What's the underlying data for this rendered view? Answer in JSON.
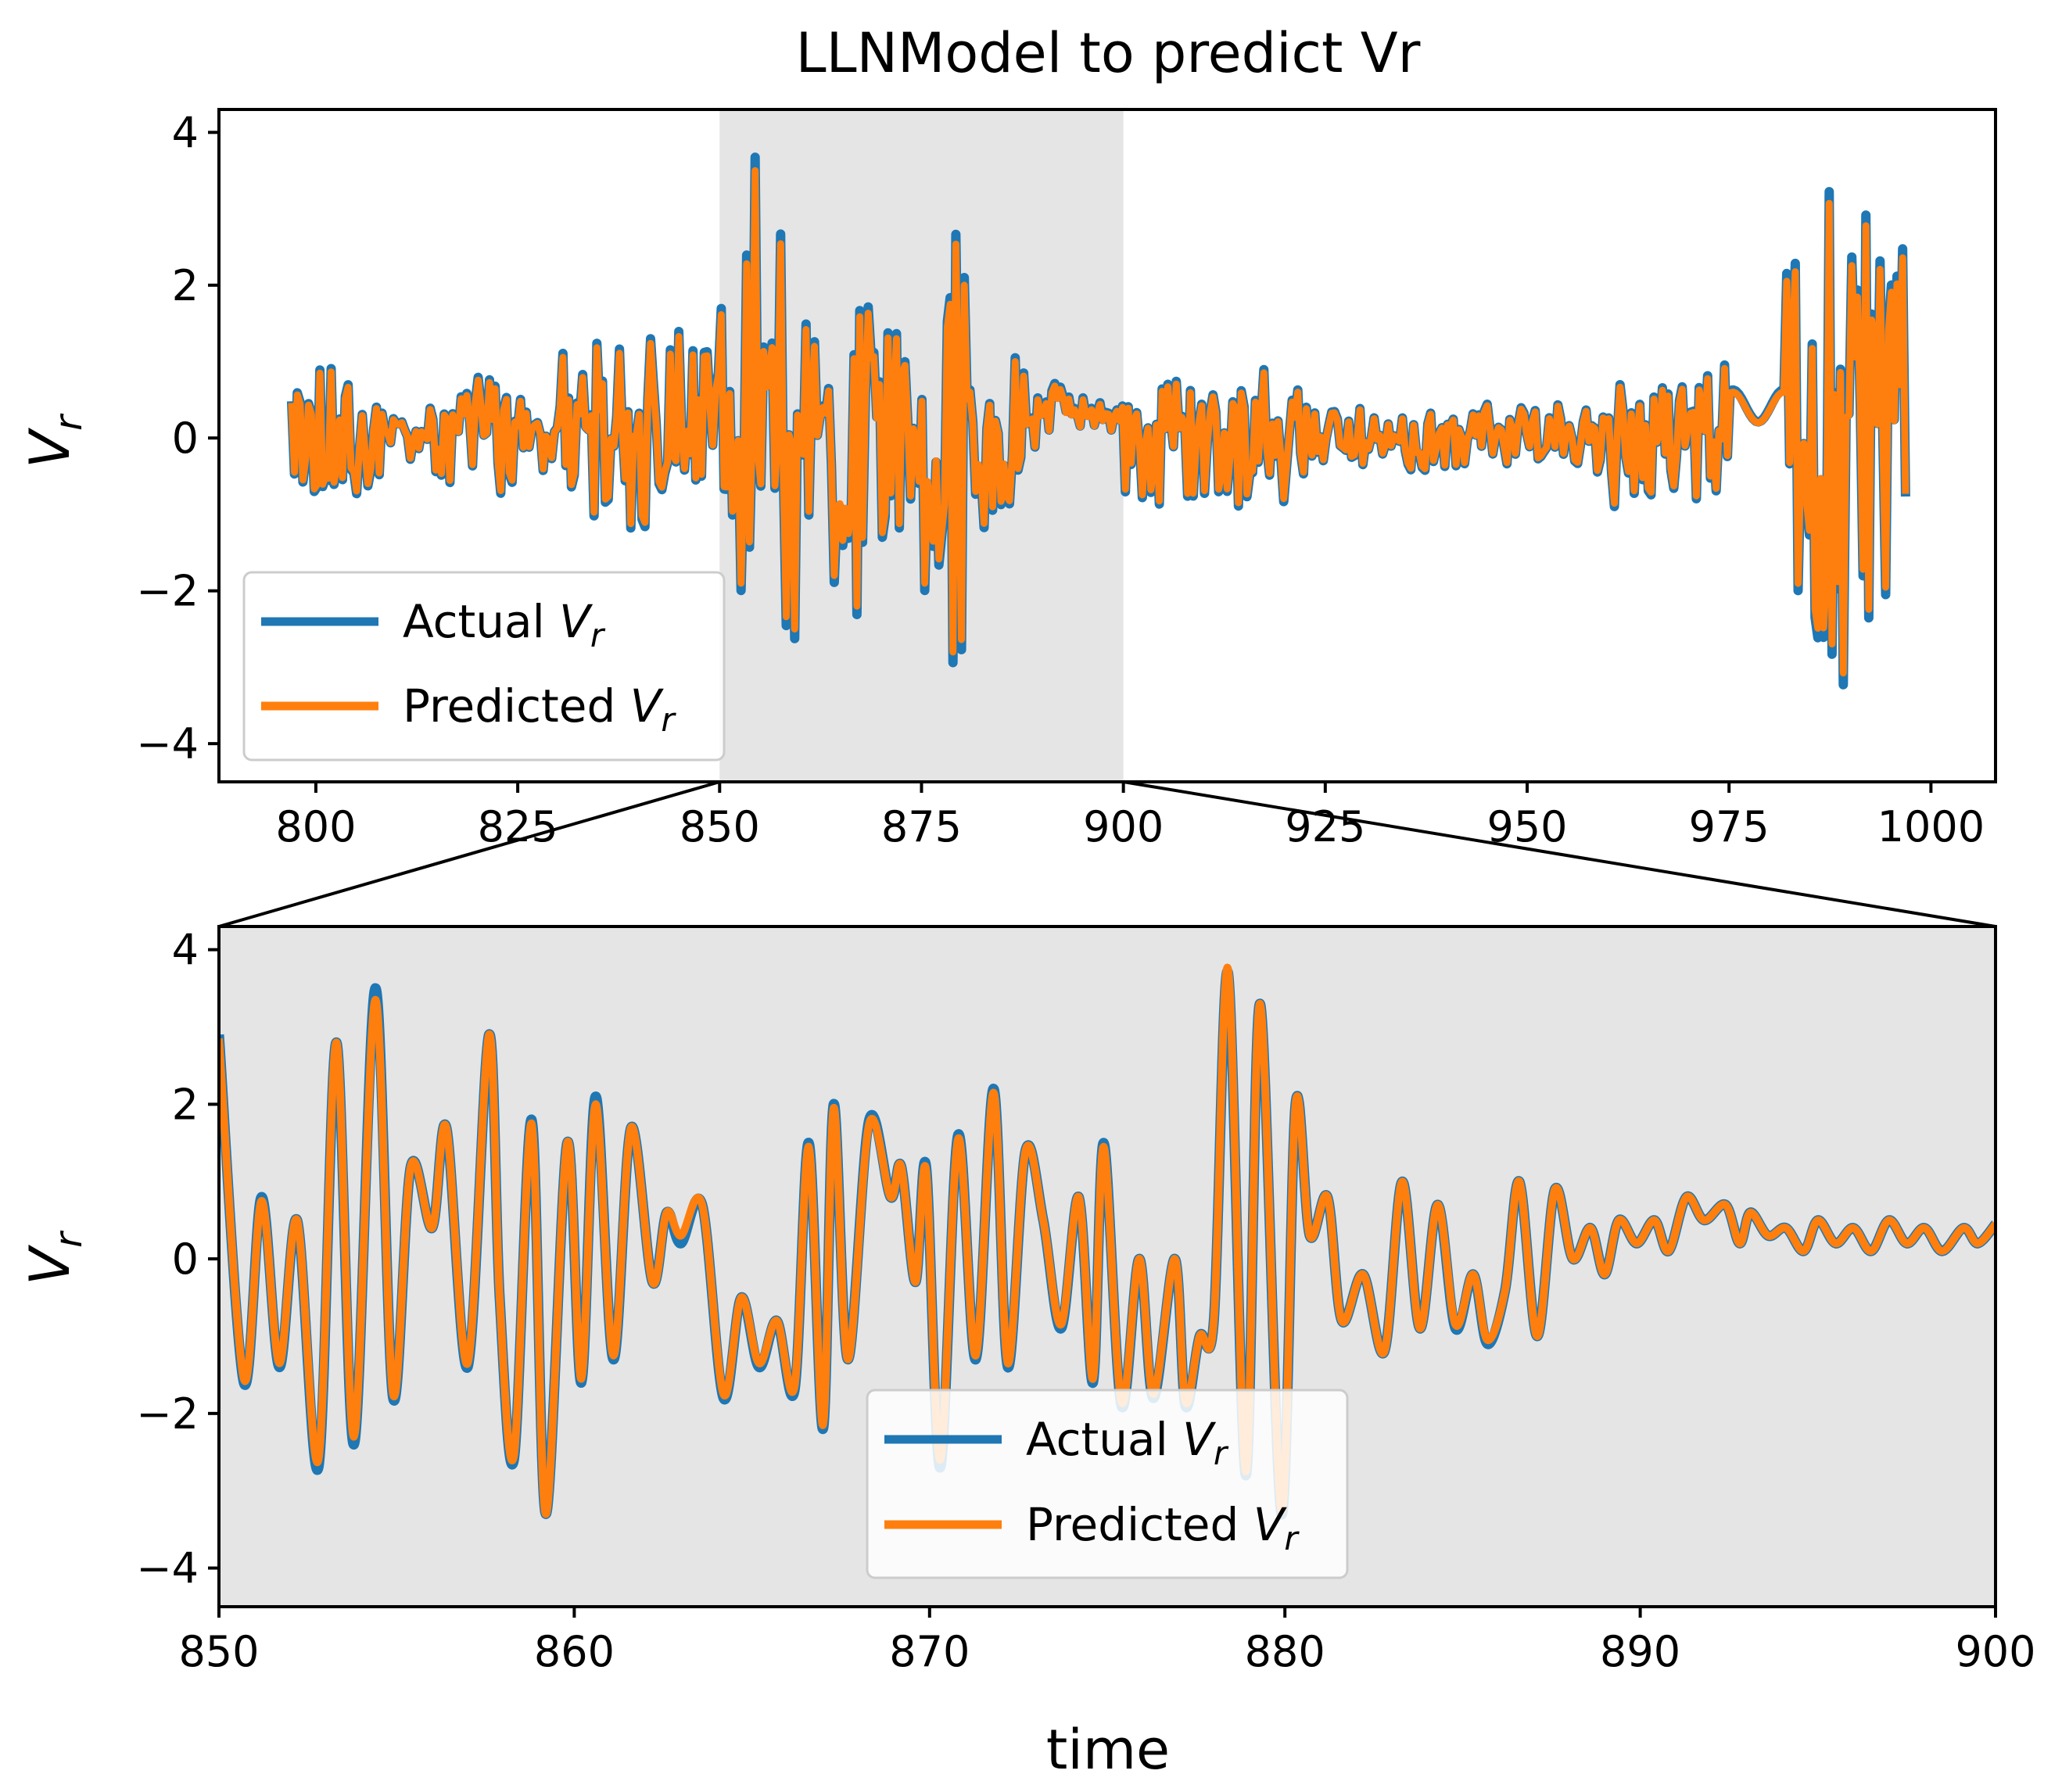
{
  "chart_data": [
    {
      "panel": "top",
      "type": "line",
      "title": "LLNModel to predict Vr",
      "xlabel": "",
      "ylabel": "V_r",
      "xlim": [
        788,
        1008
      ],
      "ylim": [
        -4.5,
        4.3
      ],
      "xticks": [
        800,
        825,
        850,
        875,
        900,
        925,
        950,
        975,
        1000
      ],
      "yticks": [
        -4,
        -2,
        0,
        2,
        4
      ],
      "ytick_labels": [
        "−4",
        "−2",
        "0",
        "2",
        "4"
      ],
      "zoom_span": [
        850,
        900
      ],
      "grid": false,
      "legend": {
        "placement": "lower-left",
        "entries": [
          {
            "name": "Actual",
            "symbol": "V",
            "sub": "r",
            "color": "#1f77b4"
          },
          {
            "name": "Predicted",
            "symbol": "V",
            "sub": "r",
            "color": "#ff7f0e"
          }
        ]
      },
      "series": [
        {
          "name": "Actual V_r",
          "color": "#1f77b4",
          "note": "time series of ~1000 samples; overlaps Predicted almost exactly"
        },
        {
          "name": "Predicted V_r",
          "color": "#ff7f0e"
        }
      ]
    },
    {
      "panel": "bottom",
      "type": "line",
      "title": "",
      "xlabel": "time",
      "ylabel": "V_r",
      "xlim": [
        850,
        900
      ],
      "ylim": [
        -4.5,
        4.3
      ],
      "xticks": [
        850,
        860,
        870,
        880,
        890,
        900
      ],
      "yticks": [
        -4,
        -2,
        0,
        2,
        4
      ],
      "ytick_labels": [
        "−4",
        "−2",
        "0",
        "2",
        "4"
      ],
      "background": "#e5e5e5",
      "grid": false,
      "legend": {
        "placement": "lower-center",
        "entries": [
          {
            "name": "Actual",
            "symbol": "V",
            "sub": "r",
            "color": "#1f77b4"
          },
          {
            "name": "Predicted",
            "symbol": "V",
            "sub": "r",
            "color": "#ff7f0e"
          }
        ]
      },
      "series": [
        {
          "name": "Actual V_r",
          "color": "#1f77b4",
          "x": [
            850,
            850.7,
            851.2,
            851.7,
            852.2,
            852.8,
            853.3,
            853.8,
            854.4,
            854.9,
            855.4,
            856.0,
            856.4,
            857.0,
            857.6,
            857.9,
            858.3,
            858.8,
            859.2,
            859.8,
            860.2,
            860.6,
            861.1,
            861.6,
            862.2,
            862.6,
            863.0,
            863.6,
            864.2,
            864.7,
            865.2,
            865.7,
            866.2,
            866.6,
            867.0,
            867.3,
            867.7,
            868.3,
            868.9,
            869.2,
            869.6,
            869.9,
            870.3,
            870.8,
            871.3,
            871.8,
            872.2,
            872.7,
            873.2,
            873.7,
            874.2,
            874.6,
            874.9,
            875.4,
            875.9,
            876.3,
            876.9,
            877.2,
            877.6,
            878.0,
            878.4,
            878.9,
            879.3,
            879.9,
            880.3,
            880.7,
            881.2,
            881.6,
            882.2,
            882.8,
            883.3,
            883.8,
            884.3,
            884.8,
            885.3,
            885.7,
            886.2,
            886.6,
            887.1,
            887.6,
            888.1,
            888.6,
            889.0,
            889.4,
            889.9,
            890.4,
            890.8,
            891.3,
            891.8,
            892.4,
            892.8,
            893.1,
            893.6,
            894.1,
            894.6,
            895.0,
            895.5,
            896.0,
            896.5,
            897.0,
            897.5,
            898.0,
            898.5,
            899.1,
            899.5,
            900
          ],
          "values": [
            2.9,
            -1.6,
            0.8,
            -1.4,
            0.5,
            -2.7,
            2.8,
            -2.4,
            3.5,
            -1.8,
            1.2,
            0.4,
            1.7,
            -1.4,
            2.9,
            -0.5,
            -2.6,
            1.8,
            -3.3,
            1.5,
            -1.6,
            2.1,
            -1.3,
            1.7,
            -0.3,
            0.6,
            0.2,
            0.7,
            -1.8,
            -0.5,
            -1.4,
            -0.8,
            -1.7,
            1.5,
            -2.2,
            2.0,
            -1.3,
            1.8,
            0.8,
            1.2,
            -0.3,
            1.2,
            -2.7,
            1.6,
            -1.3,
            2.2,
            -1.4,
            1.4,
            0.5,
            -0.9,
            0.8,
            -1.6,
            1.5,
            -1.9,
            0.0,
            -1.8,
            0.0,
            -1.9,
            -1.0,
            -0.8,
            3.7,
            -2.8,
            3.3,
            -3.3,
            2.0,
            0.3,
            0.8,
            -0.8,
            -0.2,
            -1.2,
            1.0,
            -0.9,
            0.7,
            -0.9,
            -0.2,
            -1.1,
            -0.4,
            1.0,
            -1.0,
            0.9,
            0.0,
            0.4,
            -0.2,
            0.5,
            0.2,
            0.5,
            0.1,
            0.8,
            0.5,
            0.7,
            0.2,
            0.6,
            0.3,
            0.4,
            0.1,
            0.5,
            0.2,
            0.4,
            0.1,
            0.5,
            0.2,
            0.4,
            0.1,
            0.4,
            0.2,
            0.45
          ]
        },
        {
          "name": "Predicted V_r",
          "color": "#ff7f0e",
          "x": [
            850,
            850.7,
            851.2,
            851.7,
            852.2,
            852.8,
            853.3,
            853.8,
            854.4,
            854.9,
            855.4,
            856.0,
            856.4,
            857.0,
            857.6,
            857.9,
            858.3,
            858.8,
            859.2,
            859.8,
            860.2,
            860.6,
            861.1,
            861.6,
            862.2,
            862.6,
            863.0,
            863.6,
            864.2,
            864.7,
            865.2,
            865.7,
            866.2,
            866.6,
            867.0,
            867.3,
            867.7,
            868.3,
            868.9,
            869.2,
            869.6,
            869.9,
            870.3,
            870.8,
            871.3,
            871.8,
            872.2,
            872.7,
            873.2,
            873.7,
            874.2,
            874.6,
            874.9,
            875.4,
            875.9,
            876.3,
            876.9,
            877.2,
            877.6,
            878.0,
            878.4,
            878.9,
            879.3,
            879.9,
            880.3,
            880.7,
            881.2,
            881.6,
            882.2,
            882.8,
            883.3,
            883.8,
            884.3,
            884.8,
            885.3,
            885.7,
            886.2,
            886.6,
            887.1,
            887.6,
            888.1,
            888.6,
            889.0,
            889.4,
            889.9,
            890.4,
            890.8,
            891.3,
            891.8,
            892.4,
            892.8,
            893.1,
            893.6,
            894.1,
            894.6,
            895.0,
            895.5,
            896.0,
            896.5,
            897.0,
            897.5,
            898.0,
            898.5,
            899.1,
            899.5,
            900
          ],
          "values": [
            2.85,
            -1.55,
            0.75,
            -1.35,
            0.5,
            -2.6,
            2.8,
            -2.3,
            3.35,
            -1.75,
            1.2,
            0.4,
            1.7,
            -1.35,
            2.9,
            -0.5,
            -2.55,
            1.75,
            -3.3,
            1.5,
            -1.55,
            2.0,
            -1.25,
            1.7,
            -0.3,
            0.6,
            0.3,
            0.7,
            -1.75,
            -0.5,
            -1.35,
            -0.8,
            -1.65,
            1.45,
            -2.15,
            1.95,
            -1.3,
            1.75,
            0.8,
            1.2,
            -0.3,
            1.15,
            -2.6,
            1.55,
            -1.25,
            2.15,
            -1.35,
            1.4,
            0.5,
            -0.85,
            0.8,
            -1.55,
            1.45,
            -1.85,
            0.0,
            -1.75,
            0.0,
            -1.85,
            -1.0,
            -0.8,
            3.75,
            -2.75,
            3.3,
            -3.25,
            2.0,
            0.3,
            0.8,
            -0.8,
            -0.2,
            -1.2,
            1.0,
            -0.9,
            0.7,
            -0.85,
            -0.2,
            -1.05,
            -0.4,
            1.0,
            -1.0,
            0.9,
            0.0,
            0.4,
            -0.2,
            0.5,
            0.2,
            0.5,
            0.1,
            0.8,
            0.5,
            0.7,
            0.2,
            0.6,
            0.3,
            0.4,
            0.1,
            0.5,
            0.2,
            0.4,
            0.1,
            0.5,
            0.2,
            0.4,
            0.1,
            0.4,
            0.2,
            0.45
          ]
        }
      ]
    }
  ]
}
